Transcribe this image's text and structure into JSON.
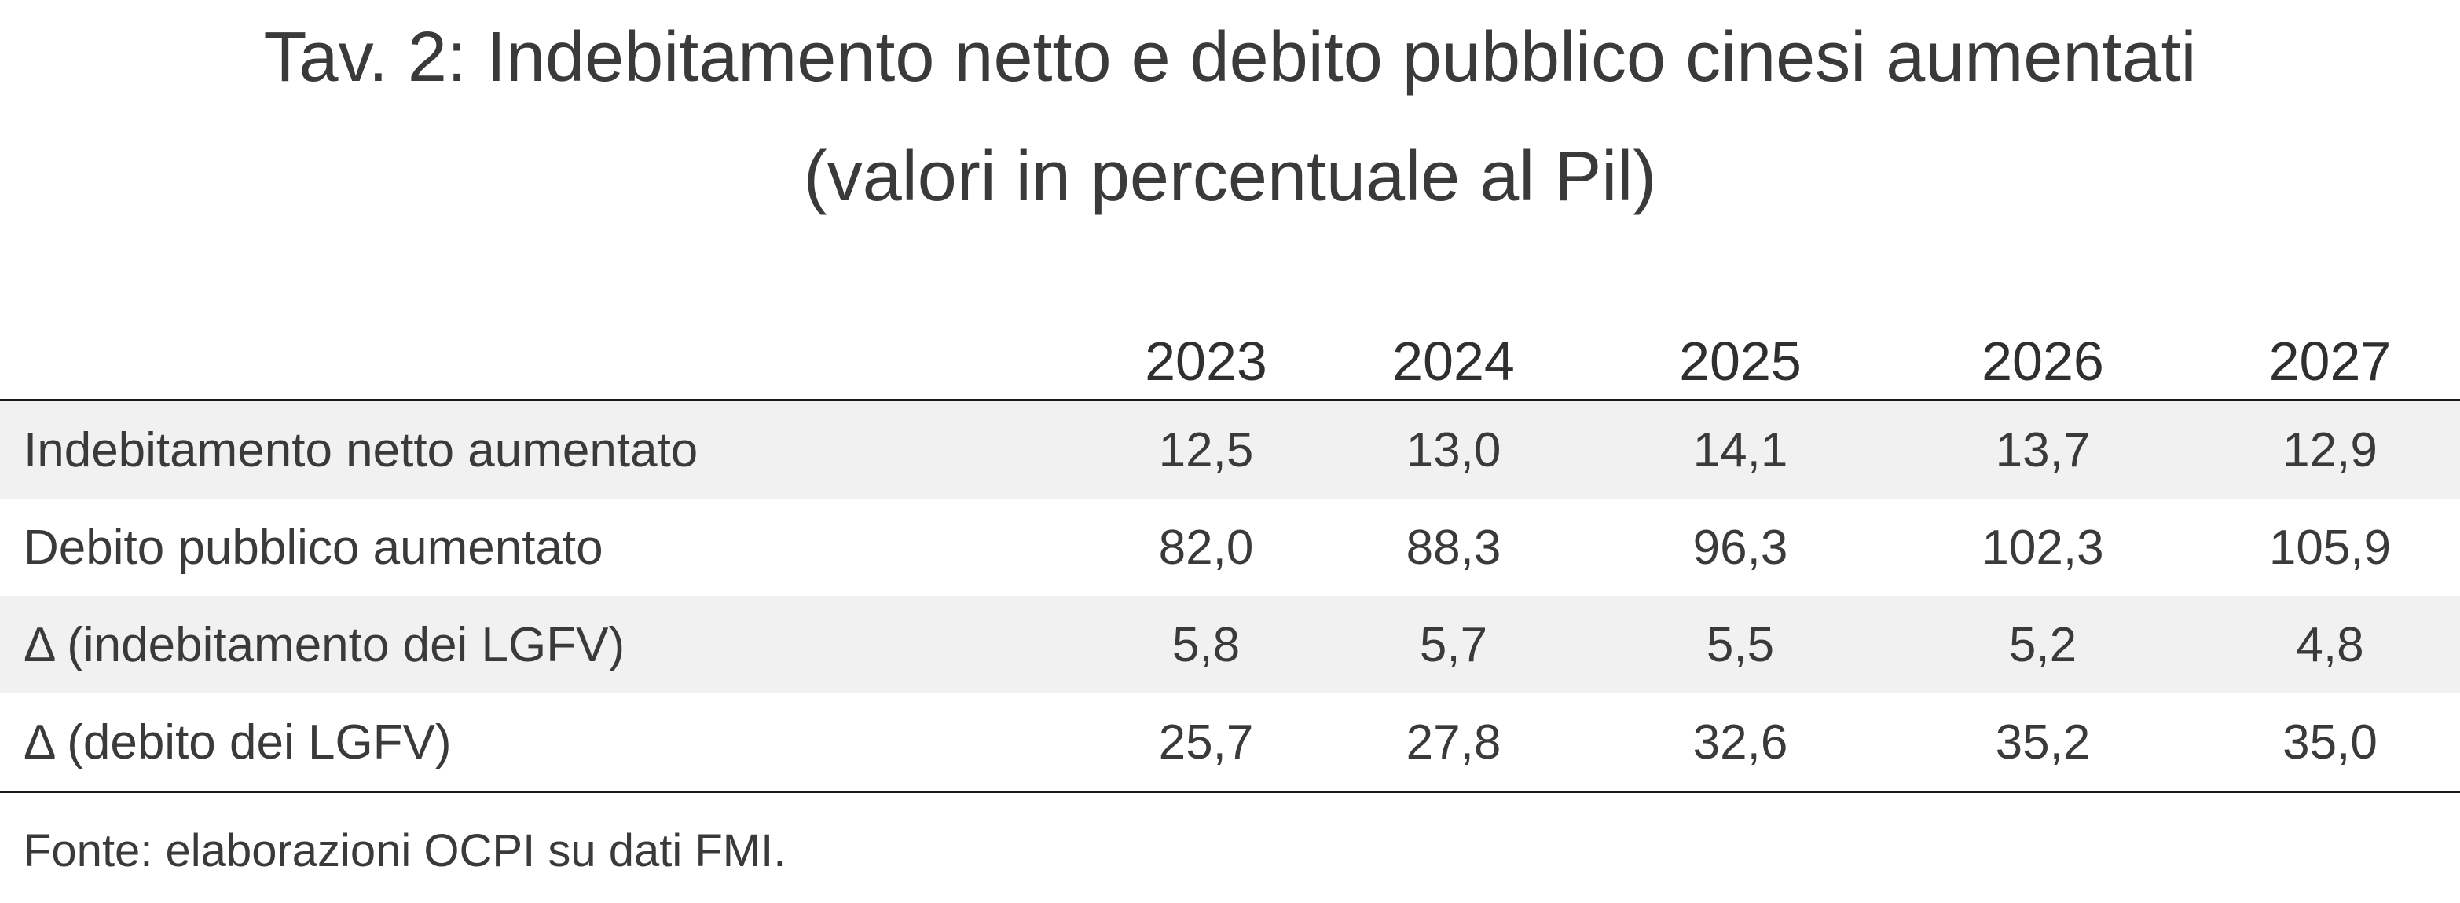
{
  "title": {
    "line1": "Tav. 2: Indebitamento netto e debito pubblico cinesi aumentati",
    "line2": "(valori in percentuale al Pil)"
  },
  "table": {
    "columns": [
      "2023",
      "2024",
      "2025",
      "2026",
      "2027"
    ],
    "rows": [
      {
        "label": "Indebitamento netto aumentato",
        "values": [
          "12,5",
          "13,0",
          "14,1",
          "13,7",
          "12,9"
        ]
      },
      {
        "label": "Debito pubblico aumentato",
        "values": [
          "82,0",
          "88,3",
          "96,3",
          "102,3",
          "105,9"
        ]
      },
      {
        "label": "Δ (indebitamento dei LGFV)",
        "values": [
          "5,8",
          "5,7",
          "5,5",
          "5,2",
          "4,8"
        ]
      },
      {
        "label": "Δ (debito dei LGFV)",
        "values": [
          "25,7",
          "27,8",
          "32,6",
          "35,2",
          "35,0"
        ]
      }
    ]
  },
  "source": "Fonte: elaborazioni OCPI su dati FMI."
}
